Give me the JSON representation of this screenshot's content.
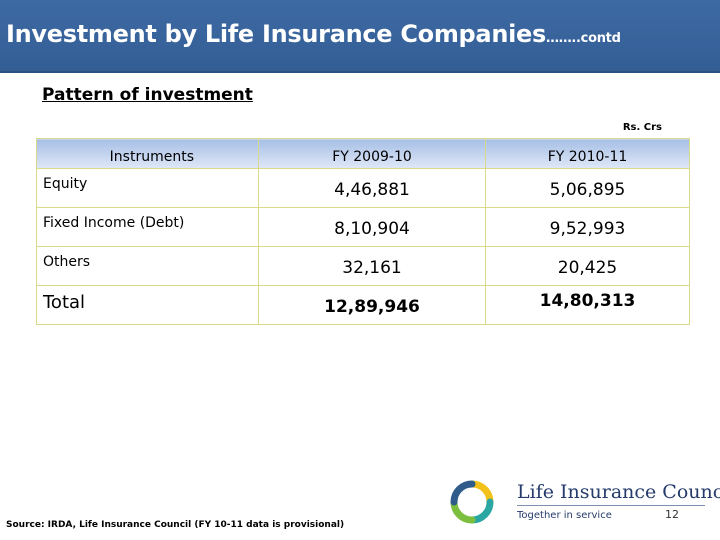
{
  "slide": {
    "title": "Investment by Life Insurance Companies",
    "title_suffix": "……..contd",
    "subtitle": "Pattern of investment",
    "units": "Rs. Crs",
    "source": "Source: IRDA, Life Insurance Council (FY 10-11 data is provisional)",
    "page_number": "12"
  },
  "table": {
    "headers": [
      "Instruments",
      "FY 2009-10",
      "FY 2010-11"
    ],
    "rows": [
      {
        "label": "Equity",
        "fy2009": "4,46,881",
        "fy2010": "5,06,895"
      },
      {
        "label": "Fixed Income (Debt)",
        "fy2009": "8,10,904",
        "fy2010": "9,52,993"
      },
      {
        "label": "Others",
        "fy2009": "32,161",
        "fy2010": "20,425"
      },
      {
        "label": "Total",
        "fy2009": "12,89,946",
        "fy2010": "14,80,313"
      }
    ]
  },
  "logo": {
    "name": "Life Insurance Council",
    "tagline": "Together in service",
    "colors": {
      "yellow": "#f2c21a",
      "blue": "#2f5c8a",
      "teal": "#2aa7a3",
      "green": "#7cbf3f"
    }
  }
}
